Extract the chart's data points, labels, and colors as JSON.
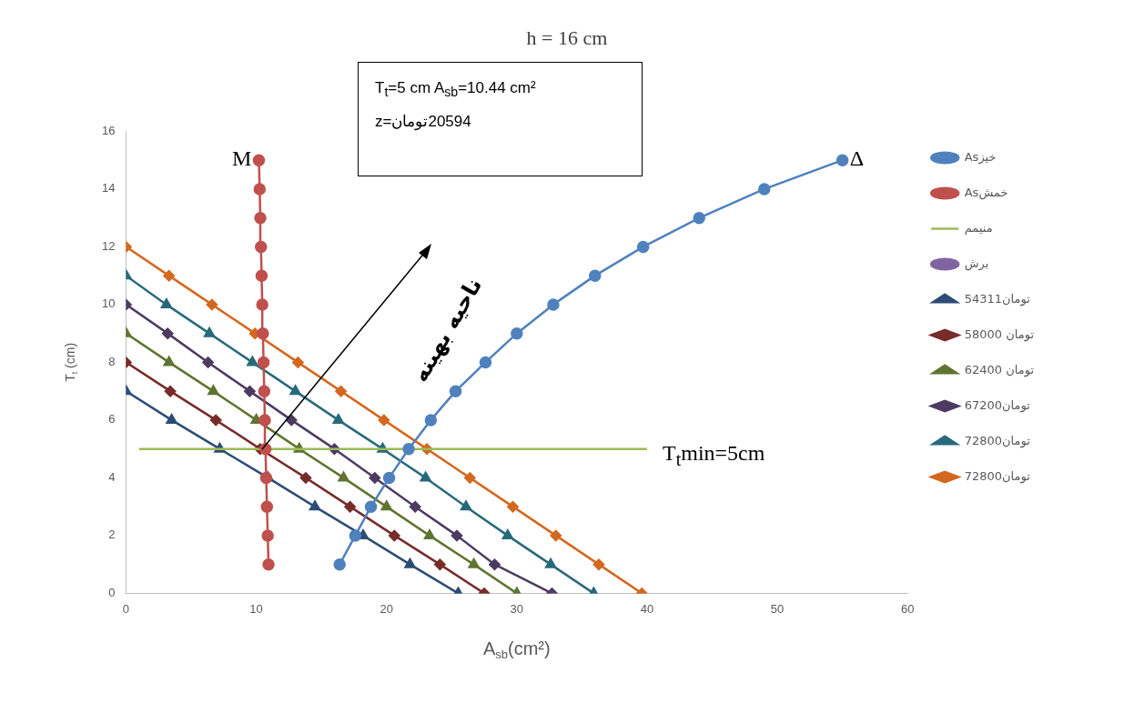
{
  "chart_data": {
    "type": "line",
    "title": "h = 16 cm",
    "xlabel": "A$_{sb}$(cm²)",
    "ylabel": "T$_{t}$ (cm)",
    "xlim": [
      0,
      60
    ],
    "xticks": [
      0,
      10,
      20,
      30,
      40,
      50,
      60
    ],
    "ylim": [
      0,
      16
    ],
    "yticks": [
      0,
      2,
      4,
      6,
      8,
      10,
      12,
      14,
      16
    ],
    "legend": "right",
    "series": [
      {
        "name": "Asخیز",
        "color": "#4f81bd",
        "marker": "circle",
        "x": [
          16.4,
          17.6,
          18.8,
          20.2,
          21.7,
          23.4,
          25.3,
          27.6,
          30.0,
          32.8,
          36.0,
          39.7,
          44.0,
          49.0,
          55.0
        ],
        "values": [
          1,
          2,
          3,
          4,
          5,
          6,
          7,
          8,
          9,
          10,
          11,
          12,
          13,
          14,
          15
        ]
      },
      {
        "name": "Asخمش",
        "color": "#c0504d",
        "marker": "circle",
        "x": [
          10.94,
          10.88,
          10.82,
          10.76,
          10.71,
          10.66,
          10.61,
          10.56,
          10.51,
          10.46,
          10.41,
          10.36,
          10.31,
          10.26,
          10.2
        ],
        "values": [
          1,
          2,
          3,
          4,
          5,
          6,
          7,
          8,
          9,
          10,
          11,
          12,
          13,
          14,
          15
        ]
      },
      {
        "name": "منیمم",
        "color": "#9bbb59",
        "marker": "none",
        "x": [
          1,
          40
        ],
        "values": [
          5,
          5
        ]
      },
      {
        "name": "برش",
        "color": "#8064a2",
        "marker": "circle"
      },
      {
        "name": "54311تومان",
        "color": "#2c4d75",
        "marker": "triangle",
        "x": [
          0,
          3.5,
          7.2,
          10.9,
          14.5,
          18.2,
          21.8,
          25.5
        ],
        "values": [
          7,
          6,
          5,
          4,
          3,
          2,
          1,
          0
        ]
      },
      {
        "name": "58000 تومان",
        "color": "#772c2a",
        "marker": "diamond",
        "x": [
          0,
          3.4,
          6.9,
          10.3,
          13.8,
          17.2,
          20.6,
          24.1,
          27.5
        ],
        "values": [
          8,
          7,
          6,
          5,
          4,
          3,
          2,
          1,
          0
        ]
      },
      {
        "name": "62400 تومان",
        "color": "#5f7530",
        "marker": "triangle",
        "x": [
          0,
          3.3,
          6.7,
          10.0,
          13.3,
          16.7,
          20.0,
          23.3,
          26.7,
          30.0
        ],
        "values": [
          9,
          8,
          7,
          6,
          5,
          4,
          3,
          2,
          1,
          0
        ]
      },
      {
        "name": "67200تومان",
        "color": "#4d3b62",
        "marker": "diamond",
        "x": [
          0,
          3.2,
          6.3,
          9.5,
          12.7,
          16.0,
          19.1,
          22.2,
          25.4,
          28.3,
          32.7
        ],
        "values": [
          10,
          9,
          8,
          7,
          6,
          5,
          4,
          3,
          2,
          1,
          0
        ]
      },
      {
        "name": "72800تومان",
        "color": "#276a7c",
        "marker": "triangle",
        "x": [
          0,
          3.1,
          6.4,
          9.7,
          13.0,
          16.3,
          19.7,
          23.0,
          26.1,
          29.3,
          32.6,
          35.9
        ],
        "values": [
          11,
          10,
          9,
          8,
          7,
          6,
          5,
          4,
          3,
          2,
          1,
          0
        ]
      },
      {
        "name": "72800تومان",
        "color": "#d4681f",
        "marker": "diamond",
        "x": [
          0,
          3.3,
          6.6,
          9.9,
          13.2,
          16.5,
          19.8,
          23.1,
          26.4,
          29.7,
          33.0,
          36.3,
          39.6
        ],
        "values": [
          12,
          11,
          10,
          9,
          8,
          7,
          6,
          5,
          4,
          3,
          2,
          1,
          0
        ]
      }
    ],
    "annotations": [
      "T$_{t}$=5 cm  A$_{sb}$=10.44 cm²",
      "z=تومان‎20594",
      "T$_{t}$min=5cm",
      {
        "text": "ناحیه بهینه",
        "x": 10.44,
        "y": 5
      },
      {
        "text": "M",
        "x": 10.2,
        "y": 15
      },
      {
        "text": "Δ",
        "x": 55,
        "y": 15
      }
    ]
  }
}
